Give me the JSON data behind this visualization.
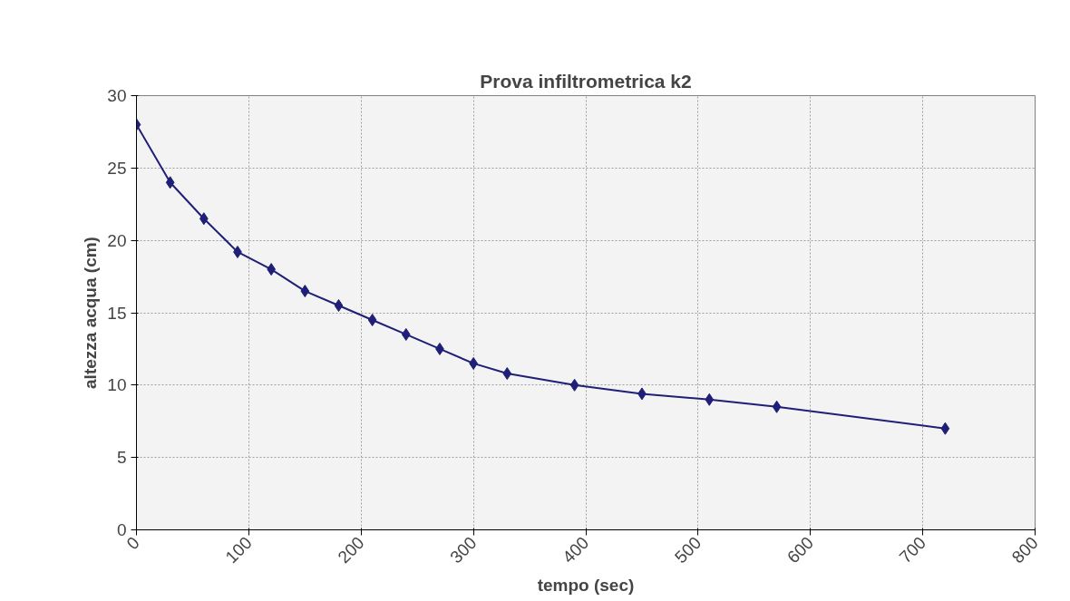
{
  "chart_data": {
    "type": "line",
    "title": "Prova infiltrometrica k2",
    "xlabel": "tempo (sec)",
    "ylabel": "altezza acqua (cm)",
    "x": [
      0,
      30,
      60,
      90,
      120,
      150,
      180,
      210,
      240,
      270,
      300,
      330,
      390,
      450,
      510,
      570,
      720
    ],
    "series": [
      {
        "color": "#1f1f78",
        "values": [
          28,
          24,
          21.5,
          19.2,
          18,
          16.5,
          15.5,
          14.5,
          13.5,
          12.5,
          11.5,
          10.8,
          10,
          9.4,
          9,
          8.5,
          7
        ]
      }
    ],
    "xlim": [
      0,
      800
    ],
    "xticks": [
      0,
      100,
      200,
      300,
      400,
      500,
      600,
      700,
      800
    ],
    "ylim": [
      0,
      30
    ],
    "yticks": [
      0,
      5,
      10,
      15,
      20,
      25,
      30
    ],
    "grid": true,
    "marker": "diamond",
    "line_style": "solid"
  }
}
